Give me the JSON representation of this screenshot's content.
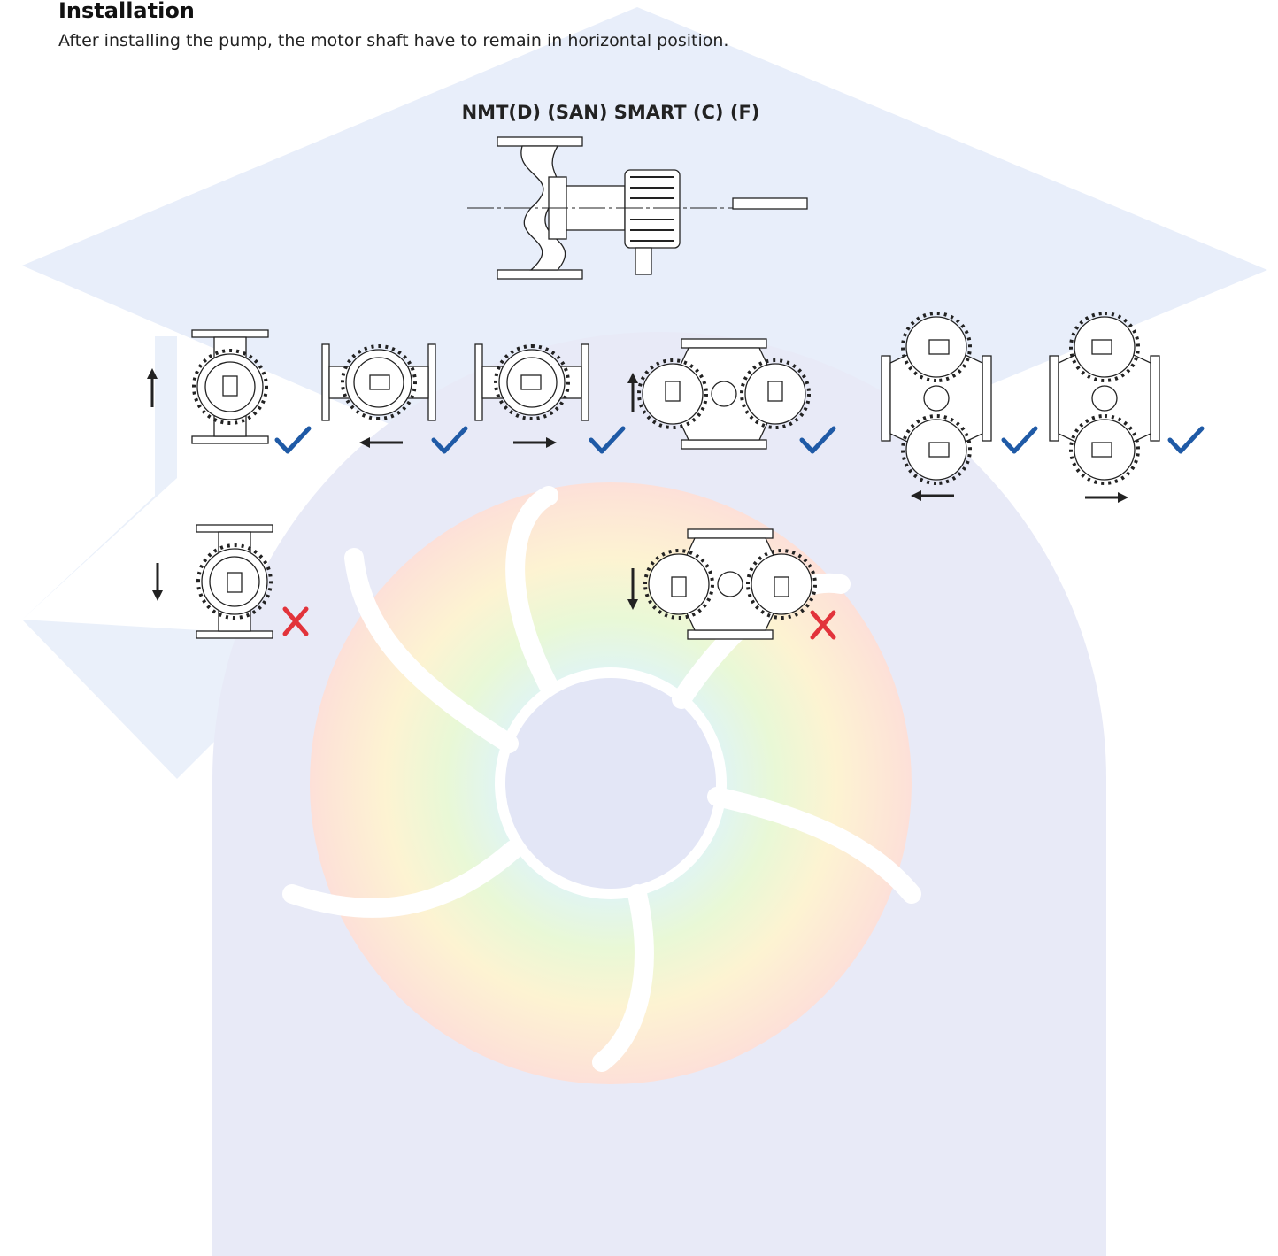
{
  "header": {
    "title": "Installation",
    "subtitle": "After installing the pump, the motor shaft have to remain in horizontal position."
  },
  "figure": {
    "title": "NMT(D) (SAN) SMART (C) (F)"
  }
}
